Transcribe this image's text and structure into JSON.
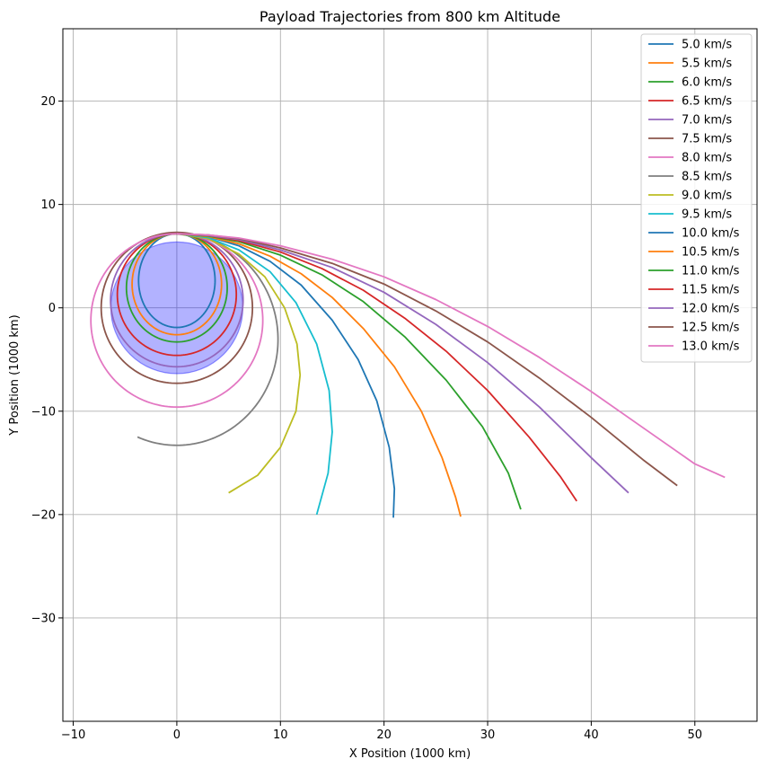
{
  "chart_data": {
    "type": "line",
    "title": "Payload Trajectories from 800 km Altitude",
    "xlabel": "X Position (1000 km)",
    "ylabel": "Y Position (1000 km)",
    "xlim": [
      -11,
      56
    ],
    "ylim": [
      -40,
      27
    ],
    "xticks": [
      -10,
      0,
      10,
      20,
      30,
      40,
      50
    ],
    "yticks": [
      -30,
      -20,
      -10,
      0,
      10,
      20
    ],
    "grid": true,
    "legend_position": "top-right",
    "earth": {
      "center": [
        0,
        0
      ],
      "radius": 6.371,
      "color": "#0000ff",
      "opacity": 0.3
    },
    "series": [
      {
        "name": "5.0 km/s",
        "color": "#1f77b4",
        "kind": "ellipse",
        "apoapsis": 7.171,
        "periapsis": 1.9
      },
      {
        "name": "5.5 km/s",
        "color": "#ff7f0e",
        "kind": "ellipse",
        "apoapsis": 7.171,
        "periapsis": 2.6
      },
      {
        "name": "6.0 km/s",
        "color": "#2ca02c",
        "kind": "ellipse",
        "apoapsis": 7.171,
        "periapsis": 3.3
      },
      {
        "name": "6.5 km/s",
        "color": "#d62728",
        "kind": "ellipse",
        "apoapsis": 7.171,
        "periapsis": 4.6
      },
      {
        "name": "7.0 km/s",
        "color": "#9467bd",
        "kind": "ellipse",
        "apoapsis": 7.171,
        "periapsis": 5.7
      },
      {
        "name": "7.5 km/s",
        "color": "#8c564b",
        "kind": "ellipse",
        "apoapsis": 7.3,
        "periapsis": 7.3
      },
      {
        "name": "8.0 km/s",
        "color": "#e377c2",
        "kind": "ellipse",
        "apoapsis": 7.171,
        "periapsis": 9.6
      },
      {
        "name": "8.5 km/s",
        "color": "#7f7f7f",
        "kind": "ellipse",
        "apoapsis": 7.171,
        "periapsis": 13.3,
        "end": [
          -3.8,
          -12.5
        ]
      },
      {
        "name": "9.0 km/s",
        "color": "#bcbd22",
        "kind": "path",
        "points": [
          [
            0,
            7.17
          ],
          [
            3,
            6.7
          ],
          [
            6,
            5.2
          ],
          [
            8.5,
            3.0
          ],
          [
            10.4,
            0.0
          ],
          [
            11.6,
            -3.5
          ],
          [
            11.9,
            -6.5
          ],
          [
            11.5,
            -10.0
          ],
          [
            10.0,
            -13.5
          ],
          [
            7.8,
            -16.2
          ],
          [
            5.0,
            -17.9
          ]
        ]
      },
      {
        "name": "9.5 km/s",
        "color": "#17becf",
        "kind": "path",
        "points": [
          [
            0,
            7.17
          ],
          [
            3,
            6.8
          ],
          [
            6,
            5.6
          ],
          [
            9,
            3.5
          ],
          [
            11.5,
            0.5
          ],
          [
            13.5,
            -3.5
          ],
          [
            14.7,
            -8.0
          ],
          [
            15.0,
            -12.0
          ],
          [
            14.6,
            -16.0
          ],
          [
            13.5,
            -20.0
          ]
        ]
      },
      {
        "name": "10.0 km/s",
        "color": "#1f77b4",
        "kind": "path",
        "points": [
          [
            0,
            7.17
          ],
          [
            3,
            6.9
          ],
          [
            6,
            6.0
          ],
          [
            9,
            4.5
          ],
          [
            12,
            2.2
          ],
          [
            15,
            -1.2
          ],
          [
            17.5,
            -5.0
          ],
          [
            19.3,
            -9.0
          ],
          [
            20.5,
            -13.5
          ],
          [
            21.0,
            -17.5
          ],
          [
            20.9,
            -20.3
          ]
        ]
      },
      {
        "name": "10.5 km/s",
        "color": "#ff7f0e",
        "kind": "path",
        "points": [
          [
            0,
            7.17
          ],
          [
            3,
            6.9
          ],
          [
            6,
            6.2
          ],
          [
            9,
            5.0
          ],
          [
            12,
            3.3
          ],
          [
            15,
            1.0
          ],
          [
            18,
            -2.0
          ],
          [
            21,
            -5.7
          ],
          [
            23.6,
            -10.0
          ],
          [
            25.6,
            -14.5
          ],
          [
            26.9,
            -18.3
          ],
          [
            27.4,
            -20.2
          ]
        ]
      },
      {
        "name": "11.0 km/s",
        "color": "#2ca02c",
        "kind": "path",
        "points": [
          [
            0,
            7.17
          ],
          [
            3,
            6.95
          ],
          [
            6,
            6.4
          ],
          [
            10,
            5.1
          ],
          [
            14,
            3.2
          ],
          [
            18,
            0.6
          ],
          [
            22,
            -2.8
          ],
          [
            26,
            -7.0
          ],
          [
            29.5,
            -11.5
          ],
          [
            32,
            -16.0
          ],
          [
            33.2,
            -19.5
          ]
        ]
      },
      {
        "name": "11.5 km/s",
        "color": "#d62728",
        "kind": "path",
        "points": [
          [
            0,
            7.17
          ],
          [
            3,
            7.0
          ],
          [
            6,
            6.5
          ],
          [
            10,
            5.4
          ],
          [
            14,
            3.8
          ],
          [
            18,
            1.7
          ],
          [
            22,
            -1.0
          ],
          [
            26,
            -4.2
          ],
          [
            30,
            -8.0
          ],
          [
            34,
            -12.5
          ],
          [
            37,
            -16.3
          ],
          [
            38.6,
            -18.7
          ]
        ]
      },
      {
        "name": "12.0 km/s",
        "color": "#9467bd",
        "kind": "path",
        "points": [
          [
            0,
            7.17
          ],
          [
            3,
            7.0
          ],
          [
            6,
            6.6
          ],
          [
            10,
            5.6
          ],
          [
            15,
            3.9
          ],
          [
            20,
            1.5
          ],
          [
            25,
            -1.6
          ],
          [
            30,
            -5.3
          ],
          [
            35,
            -9.6
          ],
          [
            40,
            -14.5
          ],
          [
            43.6,
            -17.9
          ]
        ]
      },
      {
        "name": "12.5 km/s",
        "color": "#8c564b",
        "kind": "path",
        "points": [
          [
            0,
            7.17
          ],
          [
            3,
            7.05
          ],
          [
            6,
            6.7
          ],
          [
            10,
            5.8
          ],
          [
            15,
            4.3
          ],
          [
            20,
            2.3
          ],
          [
            25,
            -0.3
          ],
          [
            30,
            -3.3
          ],
          [
            35,
            -6.8
          ],
          [
            40,
            -10.6
          ],
          [
            45,
            -14.7
          ],
          [
            48.3,
            -17.2
          ]
        ]
      },
      {
        "name": "13.0 km/s",
        "color": "#e377c2",
        "kind": "path",
        "points": [
          [
            0,
            7.17
          ],
          [
            3,
            7.05
          ],
          [
            6,
            6.75
          ],
          [
            10,
            6.0
          ],
          [
            15,
            4.7
          ],
          [
            20,
            3.0
          ],
          [
            25,
            0.8
          ],
          [
            30,
            -1.8
          ],
          [
            35,
            -4.8
          ],
          [
            40,
            -8.1
          ],
          [
            45,
            -11.6
          ],
          [
            50,
            -15.1
          ],
          [
            52.9,
            -16.4
          ]
        ]
      }
    ]
  }
}
